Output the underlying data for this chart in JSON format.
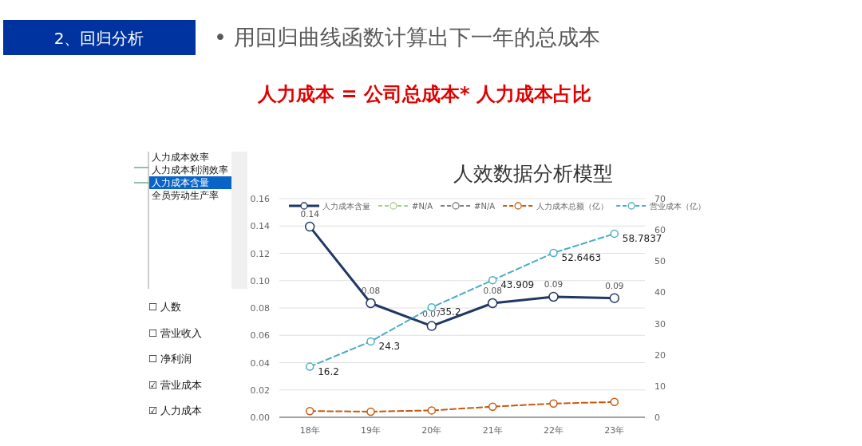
{
  "chart_data": {
    "type": "line",
    "title": "人效数据分析模型",
    "annotations": [
      "2、回归分析",
      "•  用回归曲线函数计算出下一年的总成本",
      "人力成本 = 公司总成本* 人力成本占比",
      "人力成本效率",
      "人力成本利润效率",
      "人力成本含量",
      "全员劳动生产率",
      "☐ 人数",
      "☐ 营业收入",
      "☐ 净利润",
      "☑ 营业成本",
      "☑ 人力成本"
    ],
    "categories": [
      "18年",
      "19年",
      "20年",
      "21年",
      "22年",
      "23年"
    ],
    "series": [
      {
        "name": "人力成本含量",
        "color": "#1f3864",
        "line_style": "solid",
        "values": [
          0.1395,
          0.0835,
          0.0668,
          0.0835,
          0.0882,
          0.0872
        ],
        "value_labels": [
          "0.14",
          "0.08",
          "0.07",
          "0.08",
          "0.09",
          "0.09"
        ]
      },
      {
        "name": "#N/A",
        "color": "#a9d18e",
        "line_style": "dashed",
        "values": [
          null,
          null,
          null,
          null,
          null,
          null
        ]
      },
      {
        "name": "#N/A",
        "color": "#7f7f7f",
        "line_style": "dashed",
        "values": [
          null,
          null,
          null,
          null,
          null,
          null
        ]
      },
      {
        "name": "人力成本总额（亿）",
        "color": "#c55a11",
        "line_style": "dashed",
        "axis": "y2",
        "values": [
          2.0,
          1.8,
          2.2,
          3.4,
          4.4,
          4.9
        ]
      },
      {
        "name": "营业成本（亿）",
        "color": "#4bacc6",
        "line_style": "dashed",
        "axis": "y2",
        "values": [
          16.2,
          24.3,
          35.2,
          43.909,
          52.6463,
          58.7837
        ],
        "value_labels": [
          "16.2",
          "24.3",
          "35.2",
          "43.909",
          "52.6463",
          "58.7837"
        ]
      }
    ],
    "ylim": [
      0,
      0.16
    ],
    "yticks": [
      {
        "value": 0,
        "label": "0.00"
      },
      {
        "value": 0.02,
        "label": "0.02"
      },
      {
        "value": 0.04,
        "label": "0.04"
      },
      {
        "value": 0.06,
        "label": "0.06"
      },
      {
        "value": 0.08,
        "label": "0.08"
      },
      {
        "value": 0.1,
        "label": "0.10"
      },
      {
        "value": 0.12,
        "label": "0.12"
      },
      {
        "value": 0.14,
        "label": "0.14"
      },
      {
        "value": 0.16,
        "label": "0.16"
      }
    ],
    "y2lim": [
      0,
      70
    ],
    "y2ticks": [
      0,
      10,
      20,
      30,
      40,
      50,
      60,
      70
    ],
    "grid": "y",
    "legend": "top",
    "marker": "circle"
  }
}
